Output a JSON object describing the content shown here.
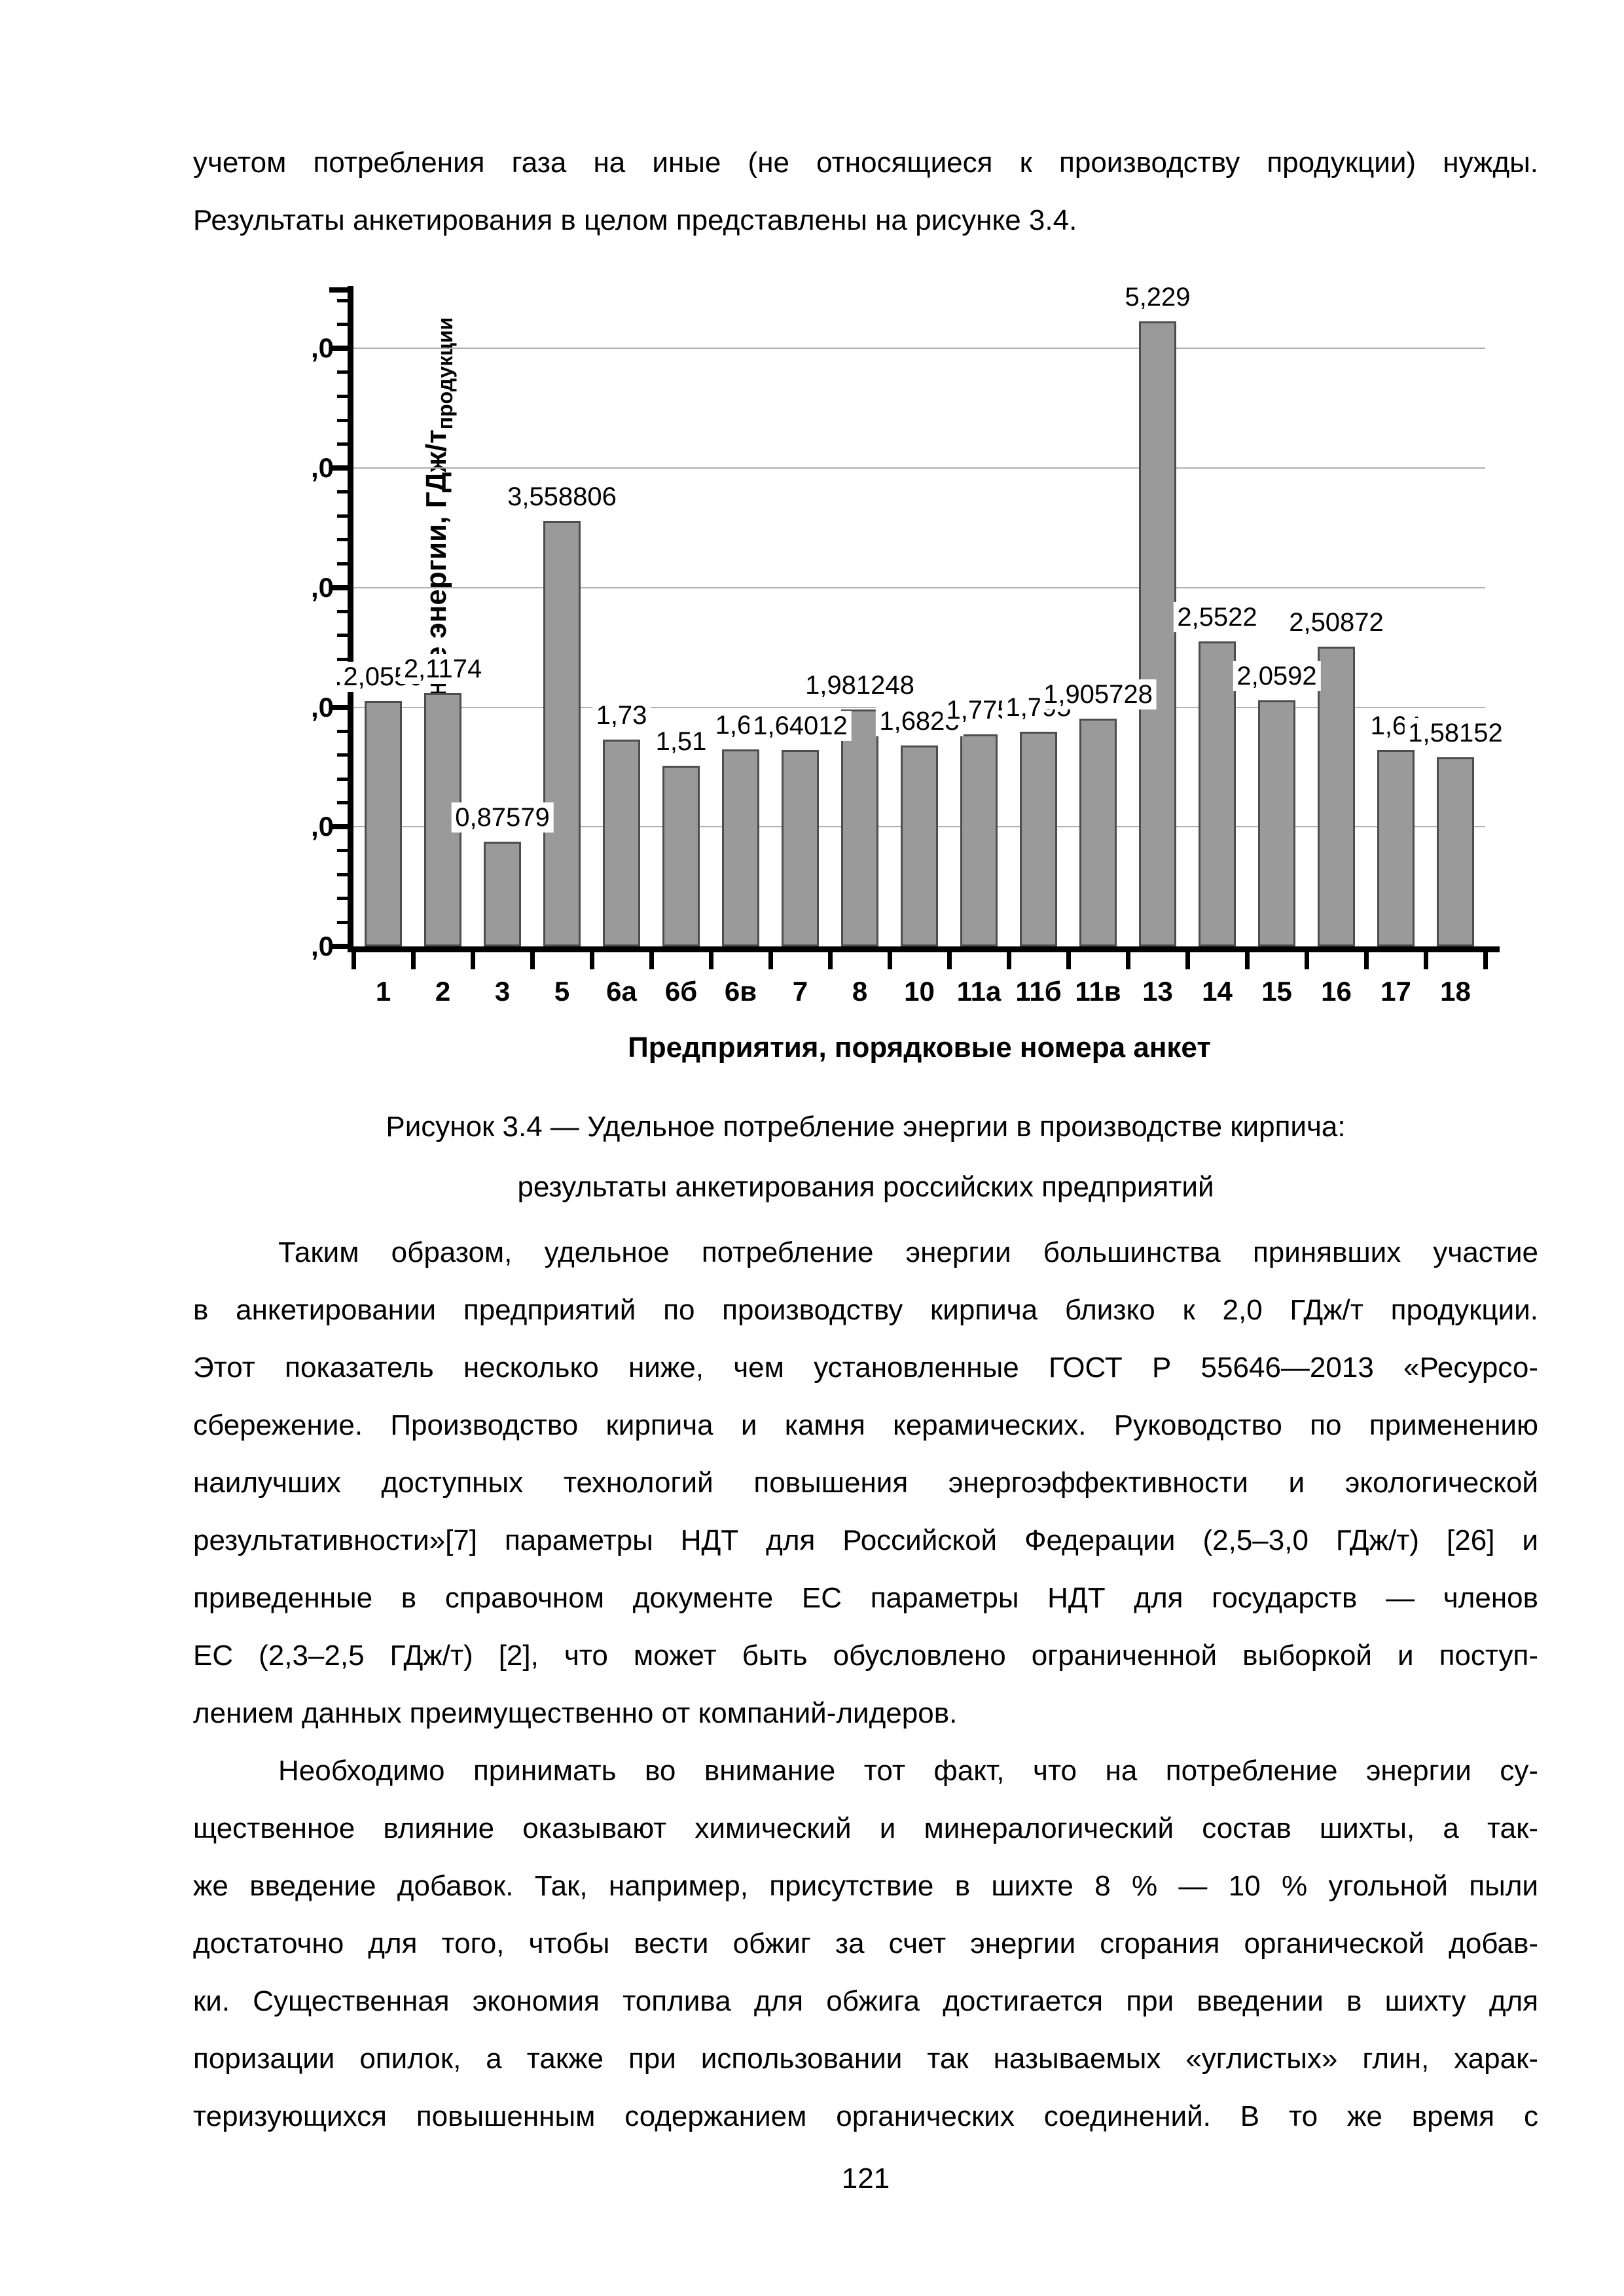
{
  "page_number": "121",
  "top_paragraph": {
    "indent_first": false,
    "justify_last": false,
    "lines": [
      "учетом потребления газа на иные (не относящиеся к производству продукции) нужды.",
      "Результаты анкетирования в целом представлены на рисунке 3.4."
    ]
  },
  "figure": {
    "caption_line1": "Рисунок 3.4 — Удельное потребление энергии в производстве кирпича:",
    "caption_line2": "результаты анкетирования российских предприятий"
  },
  "paragraphs": [
    {
      "indent_first": true,
      "justify_last": false,
      "lines": [
        "Таким образом, удельное потребление энергии большинства принявших участие",
        "в анкетировании предприятий по производству кирпича близко к 2,0 ГДж/т продукции.",
        "Этот показатель несколько ниже, чем установленные ГОСТ Р 55646—2013 «Ресурсо-",
        "сбережение. Производство кирпича и камня керамических. Руководство по применению",
        "наилучших доступных технологий повышения энергоэффективности и экологической",
        "результативности»[7] параметры НДТ для Российской Федерации (2,5–3,0 ГДж/т) [26] и",
        "приведенные в справочном документе ЕС параметры НДТ для государств — членов",
        "ЕС (2,3–2,5 ГДж/т) [2], что может быть обусловлено ограниченной выборкой и поступ-",
        "лением данных преимущественно от компаний-лидеров."
      ]
    },
    {
      "indent_first": true,
      "justify_last": true,
      "lines": [
        "Необходимо принимать во внимание тот факт, что на потребление энергии су-",
        "щественное влияние оказывают химический и минералогический состав шихты, а так-",
        "же введение добавок. Так, например, присутствие в шихте 8 % — 10 % угольной пыли",
        "достаточно для того, чтобы вести обжиг за счет энергии сгорания органической добав-",
        "ки. Существенная экономия топлива для обжига достигается при введении в шихту для",
        "поризации опилок, а также при использовании так называемых «углистых» глин, харак-",
        "теризующихся повышенным содержанием органических соединений. В то же время с"
      ]
    }
  ],
  "chart_data": {
    "type": "bar",
    "title": "",
    "xlabel": "Предприятия, порядковые номера анкет",
    "ylabel": "Общее потребление энергии, ГДж/т",
    "ylabel_subscript": "продукции",
    "categories": [
      "1",
      "2",
      "3",
      "5",
      "6а",
      "6б",
      "6в",
      "7",
      "8",
      "10",
      "11а",
      "11б",
      "11в",
      "13",
      "14",
      "15",
      "16",
      "17",
      "18"
    ],
    "values": [
      2.055,
      2.1174,
      0.87579,
      3.558806,
      1.73,
      1.51,
      1.65,
      1.64012,
      1.981248,
      1.6823,
      1.775,
      1.795,
      1.905728,
      5.229,
      2.5522,
      2.0592,
      2.50872,
      1.64,
      1.58152
    ],
    "bar_labels": [
      "2,0550",
      "2,1174",
      "0,87579",
      "3,558806",
      "1,73",
      "1,51",
      "1,65",
      "1,64012",
      "1,981248",
      "1,6823",
      "1,775",
      "1,795",
      "1,905728",
      "5,229",
      "2,5522",
      "2,0592",
      "2,50872",
      "1,64",
      "1,58152"
    ],
    "ylim": [
      0,
      5.5
    ],
    "ytick_values": [
      0,
      1,
      2,
      3,
      4,
      5
    ],
    "ytick_label_text": ",0",
    "minor_tick_step": 0.2,
    "grid": "horizontal",
    "legend": "none",
    "bar_color": "#9a9a9a",
    "bar_border_color": "#4d4d4d",
    "gridline_color": "#b0b0b0",
    "axis_color": "#000000",
    "label_background": "#ffffff"
  }
}
